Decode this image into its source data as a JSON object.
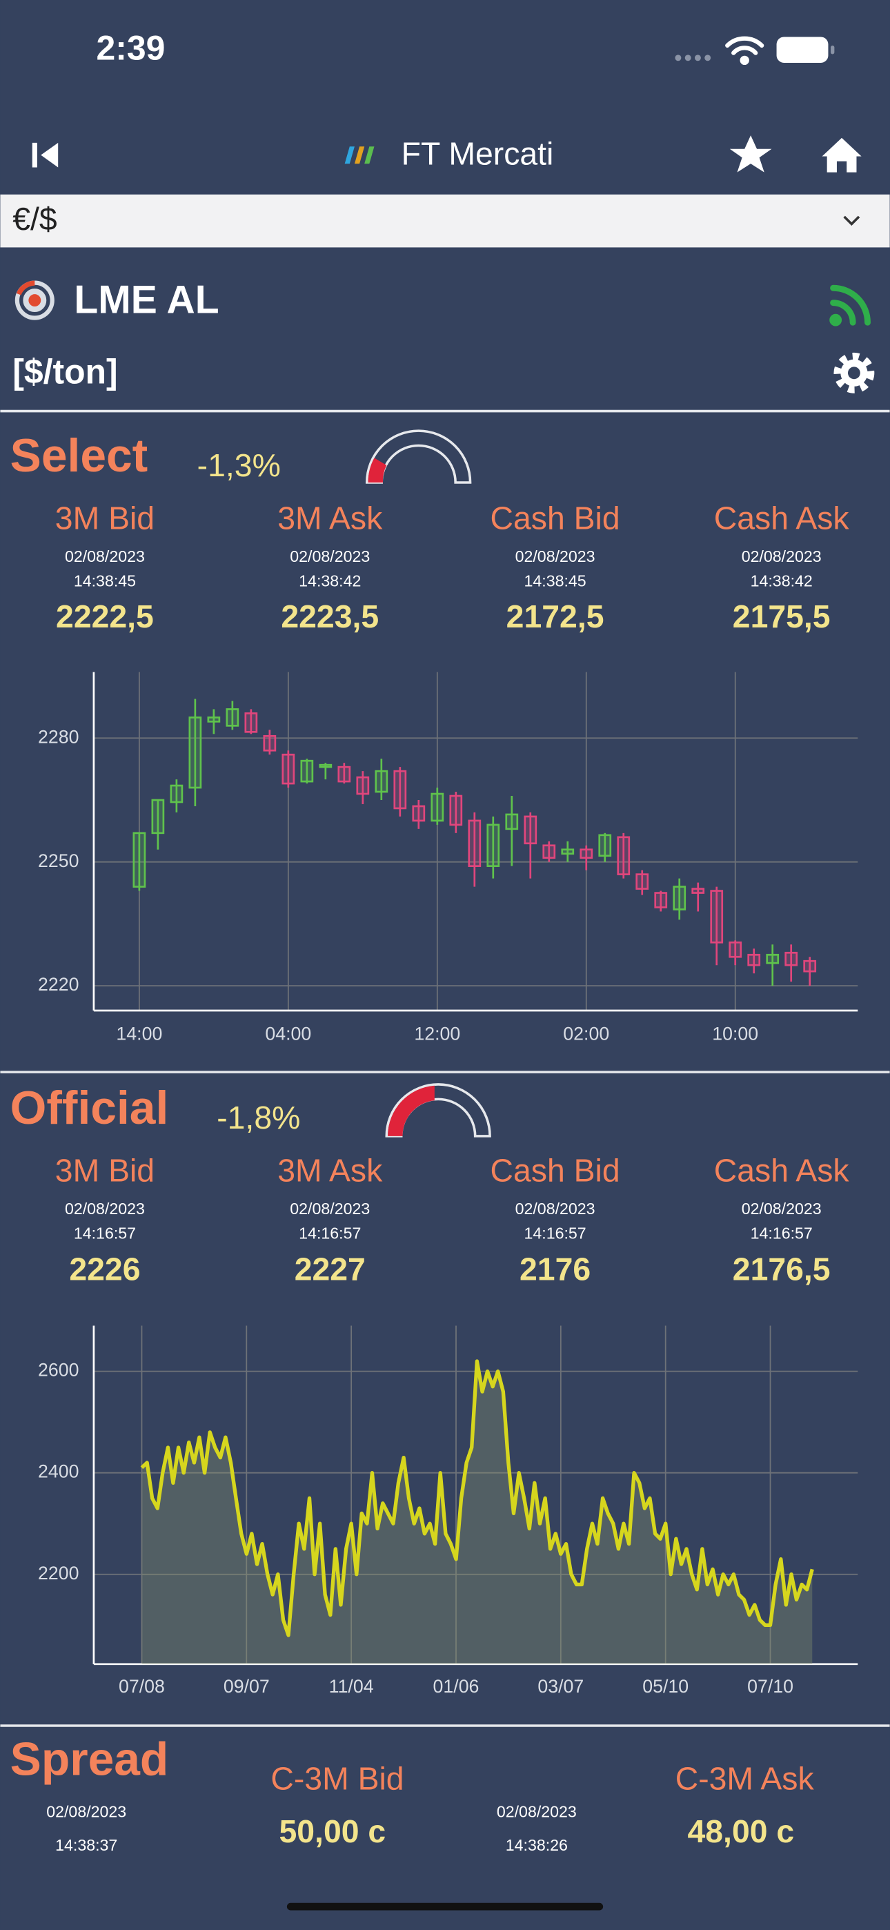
{
  "status_bar": {
    "time": "2:39"
  },
  "nav": {
    "title": "FT Mercati"
  },
  "currency_selector": {
    "value": "€/$"
  },
  "instrument": {
    "name": "LME AL",
    "unit": "[$/ton]"
  },
  "sections": [
    {
      "title": "Select",
      "change": "-1,3%",
      "quotes": [
        {
          "label": "3M Bid",
          "date": "02/08/2023",
          "time": "14:38:45",
          "price": "2222,5"
        },
        {
          "label": "3M Ask",
          "date": "02/08/2023",
          "time": "14:38:42",
          "price": "2223,5"
        },
        {
          "label": "Cash Bid",
          "date": "02/08/2023",
          "time": "14:38:45",
          "price": "2172,5"
        },
        {
          "label": "Cash Ask",
          "date": "02/08/2023",
          "time": "14:38:42",
          "price": "2175,5"
        }
      ]
    },
    {
      "title": "Official",
      "change": "-1,8%",
      "quotes": [
        {
          "label": "3M Bid",
          "date": "02/08/2023",
          "time": "14:16:57",
          "price": "2226"
        },
        {
          "label": "3M Ask",
          "date": "02/08/2023",
          "time": "14:16:57",
          "price": "2227"
        },
        {
          "label": "Cash Bid",
          "date": "02/08/2023",
          "time": "14:16:57",
          "price": "2176"
        },
        {
          "label": "Cash Ask",
          "date": "02/08/2023",
          "time": "14:16:57",
          "price": "2176,5"
        }
      ]
    }
  ],
  "spread": {
    "title": "Spread",
    "quotes": [
      {
        "label": "C-3M Bid",
        "date": "02/08/2023",
        "time": "14:38:37",
        "value": "50,00 c"
      },
      {
        "label": "C-3M Ask",
        "date": "02/08/2023",
        "time": "14:38:26",
        "value": "48,00 c"
      }
    ]
  },
  "chart_data": [
    {
      "type": "candlestick",
      "categories": [
        "14:00",
        null,
        null,
        null,
        null,
        null,
        null,
        null,
        "04:00",
        null,
        null,
        null,
        null,
        null,
        null,
        null,
        "12:00",
        null,
        null,
        null,
        null,
        null,
        null,
        null,
        "02:00",
        null,
        null,
        null,
        null,
        null,
        null,
        null,
        "10:00",
        null,
        null,
        null,
        null
      ],
      "open": [
        2244,
        2257,
        2264.5,
        2268,
        2284,
        2283,
        2286,
        2280.5,
        2276,
        2269.5,
        2273,
        2273,
        2270.5,
        2267,
        2272,
        2263.5,
        2260,
        2266,
        2260,
        2249,
        2258,
        2261,
        2254,
        2252,
        2253,
        2251.5,
        2256,
        2247,
        2242.5,
        2238.5,
        2243.5,
        2243,
        2230.5,
        2227.5,
        2225.5,
        2228,
        2226
      ],
      "high": [
        2257,
        2265,
        2270,
        2289.5,
        2287,
        2289,
        2287,
        2282,
        2277,
        2275,
        2274,
        2274,
        2272,
        2275,
        2273,
        2265,
        2268,
        2267,
        2262,
        2261,
        2266,
        2262,
        2255,
        2255,
        2254,
        2257,
        2257,
        2248,
        2243,
        2246,
        2245,
        2244,
        2231,
        2229,
        2230,
        2230,
        2227
      ],
      "low": [
        2243,
        2253,
        2262,
        2263.5,
        2281,
        2282,
        2281,
        2276,
        2268,
        2269,
        2270,
        2269,
        2264,
        2265,
        2261,
        2258,
        2259,
        2257,
        2244,
        2246,
        2249,
        2246,
        2250,
        2250,
        2248,
        2250,
        2246,
        2242,
        2238,
        2236,
        2238,
        2225,
        2225,
        2223,
        2220,
        2221,
        2220
      ],
      "close": [
        2257,
        2265,
        2268.5,
        2285,
        2285,
        2287,
        2281.5,
        2277,
        2269,
        2274.5,
        2273.5,
        2269.5,
        2266.5,
        2272,
        2263,
        2260,
        2266.5,
        2259,
        2249,
        2259,
        2261.5,
        2254.5,
        2251,
        2253,
        2251,
        2256.5,
        2247,
        2243.5,
        2239,
        2244,
        2242.5,
        2230.5,
        2227,
        2225,
        2227.5,
        2225,
        2223.5
      ],
      "up_color": "#5fc24c",
      "down_color": "#e0467c",
      "ylim": [
        2214,
        2296
      ],
      "yticks": [
        2220,
        2250,
        2280
      ],
      "grid": true
    },
    {
      "type": "area",
      "categories": [
        "07/08",
        null,
        null,
        null,
        null,
        null,
        null,
        null,
        null,
        null,
        null,
        null,
        null,
        null,
        null,
        null,
        null,
        null,
        null,
        null,
        "09/07",
        null,
        null,
        null,
        null,
        null,
        null,
        null,
        null,
        null,
        null,
        null,
        null,
        null,
        null,
        null,
        null,
        null,
        null,
        null,
        "11/04",
        null,
        null,
        null,
        null,
        null,
        null,
        null,
        null,
        null,
        null,
        null,
        null,
        null,
        null,
        null,
        null,
        null,
        null,
        null,
        "01/06",
        null,
        null,
        null,
        null,
        null,
        null,
        null,
        null,
        null,
        null,
        null,
        null,
        null,
        null,
        null,
        null,
        null,
        null,
        null,
        "03/07",
        null,
        null,
        null,
        null,
        null,
        null,
        null,
        null,
        null,
        null,
        null,
        null,
        null,
        null,
        null,
        null,
        null,
        null,
        null,
        "05/10",
        null,
        null,
        null,
        null,
        null,
        null,
        null,
        null,
        null,
        null,
        null,
        null,
        null,
        null,
        null,
        null,
        null,
        null,
        null,
        "07/10",
        null,
        null,
        null,
        null,
        null,
        null,
        null,
        null
      ],
      "values": [
        2410,
        2420,
        2350,
        2330,
        2400,
        2450,
        2380,
        2450,
        2400,
        2460,
        2420,
        2470,
        2400,
        2480,
        2450,
        2430,
        2470,
        2420,
        2350,
        2280,
        2240,
        2280,
        2220,
        2260,
        2200,
        2160,
        2200,
        2110,
        2080,
        2200,
        2300,
        2250,
        2350,
        2200,
        2300,
        2160,
        2120,
        2250,
        2140,
        2250,
        2300,
        2200,
        2320,
        2300,
        2400,
        2290,
        2340,
        2320,
        2300,
        2380,
        2430,
        2350,
        2300,
        2330,
        2280,
        2300,
        2260,
        2400,
        2280,
        2260,
        2230,
        2350,
        2420,
        2450,
        2620,
        2560,
        2600,
        2570,
        2600,
        2560,
        2420,
        2320,
        2400,
        2350,
        2290,
        2380,
        2300,
        2350,
        2250,
        2280,
        2240,
        2260,
        2200,
        2180,
        2180,
        2250,
        2300,
        2260,
        2350,
        2320,
        2300,
        2250,
        2300,
        2260,
        2400,
        2380,
        2330,
        2350,
        2280,
        2270,
        2300,
        2200,
        2270,
        2220,
        2250,
        2200,
        2170,
        2250,
        2180,
        2210,
        2160,
        2200,
        2180,
        2200,
        2160,
        2150,
        2120,
        2140,
        2110,
        2100,
        2100,
        2180,
        2230,
        2140,
        2200,
        2150,
        2180,
        2170,
        2210
      ],
      "color": "#d6d61e",
      "ylim": [
        2023,
        2690
      ],
      "yticks": [
        2200,
        2400,
        2600
      ],
      "grid": true
    }
  ]
}
